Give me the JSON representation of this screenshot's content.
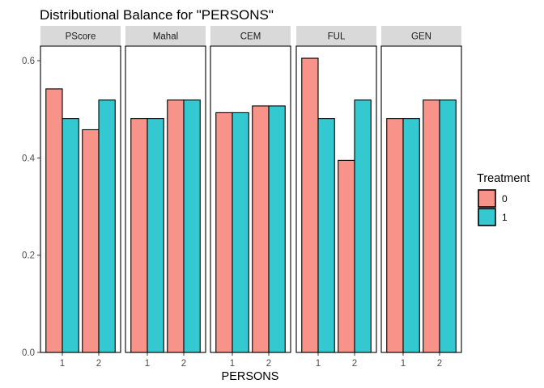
{
  "chart_data": {
    "type": "bar",
    "title": "Distributional Balance for \"PERSONS\"",
    "xlabel": "PERSONS",
    "ylabel": "",
    "ylim": [
      0,
      0.63
    ],
    "yticks": [
      0.0,
      0.2,
      0.4,
      0.6
    ],
    "ytick_labels": [
      "0.0",
      "0.2",
      "0.4",
      "0.6"
    ],
    "categories": [
      "1",
      "2"
    ],
    "legend": {
      "title": "Treatment",
      "position": "right",
      "items": [
        {
          "label": "0",
          "color": "#F8938A"
        },
        {
          "label": "1",
          "color": "#34C9D0"
        }
      ]
    },
    "panels": [
      {
        "name": "PScore",
        "series": [
          {
            "treatment": "0",
            "values": [
              0.542,
              0.458
            ]
          },
          {
            "treatment": "1",
            "values": [
              0.481,
              0.519
            ]
          }
        ]
      },
      {
        "name": "Mahal",
        "series": [
          {
            "treatment": "0",
            "values": [
              0.481,
              0.519
            ]
          },
          {
            "treatment": "1",
            "values": [
              0.481,
              0.519
            ]
          }
        ]
      },
      {
        "name": "CEM",
        "series": [
          {
            "treatment": "0",
            "values": [
              0.493,
              0.507
            ]
          },
          {
            "treatment": "1",
            "values": [
              0.493,
              0.507
            ]
          }
        ]
      },
      {
        "name": "FUL",
        "series": [
          {
            "treatment": "0",
            "values": [
              0.605,
              0.395
            ]
          },
          {
            "treatment": "1",
            "values": [
              0.481,
              0.519
            ]
          }
        ]
      },
      {
        "name": "GEN",
        "series": [
          {
            "treatment": "0",
            "values": [
              0.481,
              0.519
            ]
          },
          {
            "treatment": "1",
            "values": [
              0.481,
              0.519
            ]
          }
        ]
      }
    ],
    "grid": false,
    "colors": {
      "panel_border": "#000000",
      "strip_background": "#D9D9D9",
      "bar_outline": "#000000"
    }
  }
}
